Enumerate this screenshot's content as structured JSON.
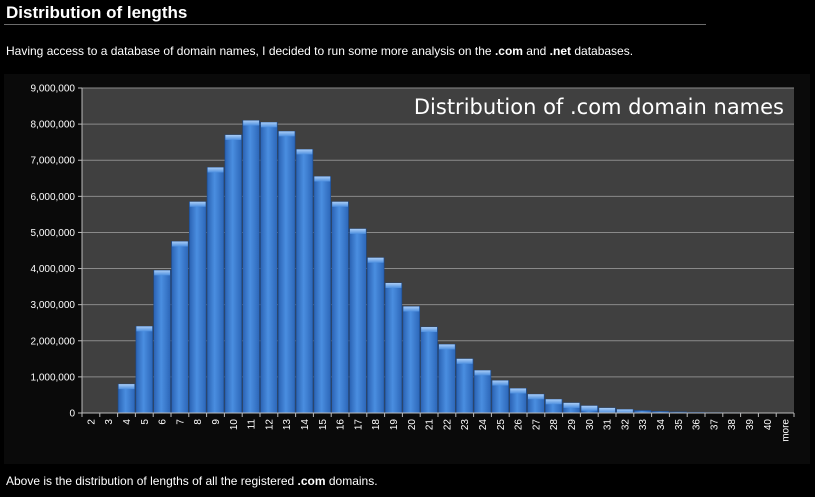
{
  "header": {
    "title": "Distribution of lengths"
  },
  "intro": {
    "text_before": "Having access to a database of domain names, I decided to run some more analysis on the ",
    "com": ".com",
    "text_and": " and ",
    "net": ".net",
    "text_after": " databases."
  },
  "outro": {
    "text_before": "Above is the distribution of lengths of all the registered ",
    "com": ".com",
    "text_after": " domains."
  },
  "colors": {
    "page_background": "#000000",
    "plot_background": "#404040",
    "bar_fill": "#3d7fd6",
    "bar_highlight": "#8ab8f2",
    "gridline": "#8a8a8a"
  },
  "chart_data": {
    "type": "bar",
    "title": "Distribution of .com domain names",
    "xlabel": "",
    "ylabel": "",
    "ylim": [
      0,
      9000000
    ],
    "yticks": [
      "0",
      "1,000,000",
      "2,000,000",
      "3,000,000",
      "4,000,000",
      "5,000,000",
      "6,000,000",
      "7,000,000",
      "8,000,000",
      "9,000,000"
    ],
    "grid": true,
    "categories": [
      "2",
      "3",
      "4",
      "5",
      "6",
      "7",
      "8",
      "9",
      "10",
      "11",
      "12",
      "13",
      "14",
      "15",
      "16",
      "17",
      "18",
      "19",
      "20",
      "21",
      "22",
      "23",
      "24",
      "25",
      "26",
      "27",
      "28",
      "29",
      "30",
      "31",
      "32",
      "33",
      "34",
      "35",
      "36",
      "37",
      "38",
      "39",
      "40",
      "more"
    ],
    "values": [
      0,
      0,
      800000,
      2400000,
      3950000,
      4750000,
      5850000,
      6800000,
      7700000,
      8100000,
      8050000,
      7800000,
      7300000,
      6550000,
      5850000,
      5100000,
      4300000,
      3600000,
      2950000,
      2380000,
      1900000,
      1500000,
      1180000,
      900000,
      680000,
      520000,
      380000,
      280000,
      200000,
      140000,
      100000,
      70000,
      45000,
      30000,
      20000,
      12000,
      8000,
      5000,
      3000,
      2000
    ]
  }
}
